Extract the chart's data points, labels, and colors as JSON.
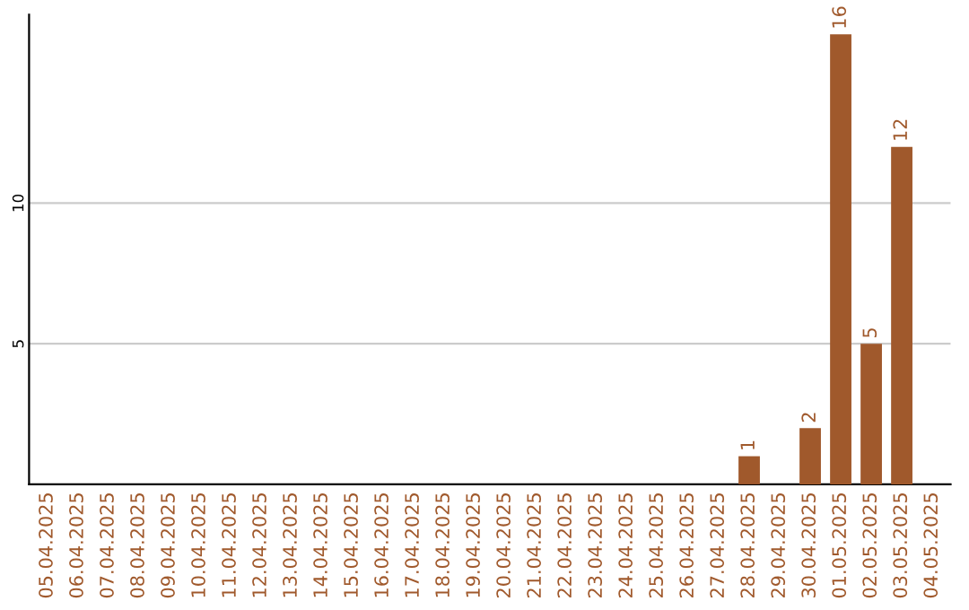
{
  "chart_data": {
    "type": "bar",
    "categories": [
      "05.04.2025",
      "06.04.2025",
      "07.04.2025",
      "08.04.2025",
      "09.04.2025",
      "10.04.2025",
      "11.04.2025",
      "12.04.2025",
      "13.04.2025",
      "14.04.2025",
      "15.04.2025",
      "16.04.2025",
      "17.04.2025",
      "18.04.2025",
      "19.04.2025",
      "20.04.2025",
      "21.04.2025",
      "22.04.2025",
      "23.04.2025",
      "24.04.2025",
      "25.04.2025",
      "26.04.2025",
      "27.04.2025",
      "28.04.2025",
      "29.04.2025",
      "30.04.2025",
      "01.05.2025",
      "02.05.2025",
      "03.05.2025",
      "04.05.2025"
    ],
    "values": [
      0,
      0,
      0,
      0,
      0,
      0,
      0,
      0,
      0,
      0,
      0,
      0,
      0,
      0,
      0,
      0,
      0,
      0,
      0,
      0,
      0,
      0,
      0,
      1,
      0,
      2,
      16,
      5,
      12,
      0
    ],
    "value_labels": [
      null,
      null,
      null,
      null,
      null,
      null,
      null,
      null,
      null,
      null,
      null,
      null,
      null,
      null,
      null,
      null,
      null,
      null,
      null,
      null,
      null,
      null,
      null,
      "1",
      null,
      "2",
      "16",
      "5",
      "12",
      null
    ],
    "color": "#a0592c",
    "ylim": [
      0,
      16.7
    ],
    "yticks": [
      5,
      10
    ],
    "grid": "y"
  }
}
